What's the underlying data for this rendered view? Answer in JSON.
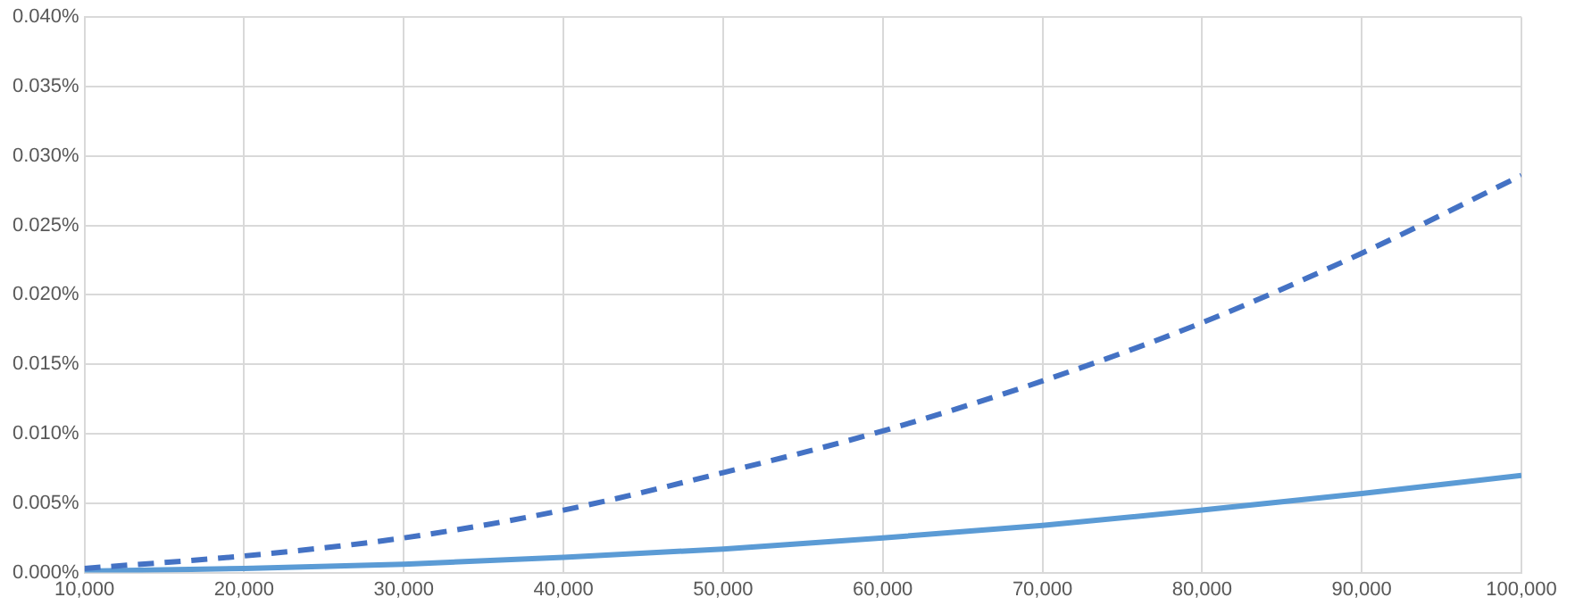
{
  "chart_data": {
    "type": "line",
    "x": [
      10000,
      20000,
      30000,
      40000,
      50000,
      60000,
      70000,
      80000,
      90000,
      100000
    ],
    "series": [
      {
        "color": "#4472c4",
        "line_style": "dashed",
        "values": [
          0.0003,
          0.0012,
          0.0025,
          0.0045,
          0.0072,
          0.0102,
          0.0138,
          0.018,
          0.023,
          0.0286
        ]
      },
      {
        "color": "#5b9bd5",
        "line_style": "solid",
        "values": [
          0.0001,
          0.0003,
          0.0006,
          0.0011,
          0.0017,
          0.0025,
          0.0034,
          0.0045,
          0.0057,
          0.007
        ]
      }
    ],
    "xlim": [
      10000,
      100000
    ],
    "xticks": [
      {
        "value": 10000,
        "label": "10,000"
      },
      {
        "value": 20000,
        "label": "20,000"
      },
      {
        "value": 30000,
        "label": "30,000"
      },
      {
        "value": 40000,
        "label": "40,000"
      },
      {
        "value": 50000,
        "label": "50,000"
      },
      {
        "value": 60000,
        "label": "60,000"
      },
      {
        "value": 70000,
        "label": "70,000"
      },
      {
        "value": 80000,
        "label": "80,000"
      },
      {
        "value": 90000,
        "label": "90,000"
      },
      {
        "value": 100000,
        "label": "100,000"
      }
    ],
    "ylim": [
      0,
      0.04
    ],
    "yticks": [
      {
        "value": 0,
        "label": "0.000%"
      },
      {
        "value": 0.005,
        "label": "0.005%"
      },
      {
        "value": 0.01,
        "label": "0.010%"
      },
      {
        "value": 0.015,
        "label": "0.015%"
      },
      {
        "value": 0.02,
        "label": "0.020%"
      },
      {
        "value": 0.025,
        "label": "0.025%"
      },
      {
        "value": 0.03,
        "label": "0.030%"
      },
      {
        "value": 0.035,
        "label": "0.035%"
      },
      {
        "value": 0.04,
        "label": "0.040%"
      }
    ],
    "grid": true,
    "legend": false,
    "marker": "none"
  }
}
